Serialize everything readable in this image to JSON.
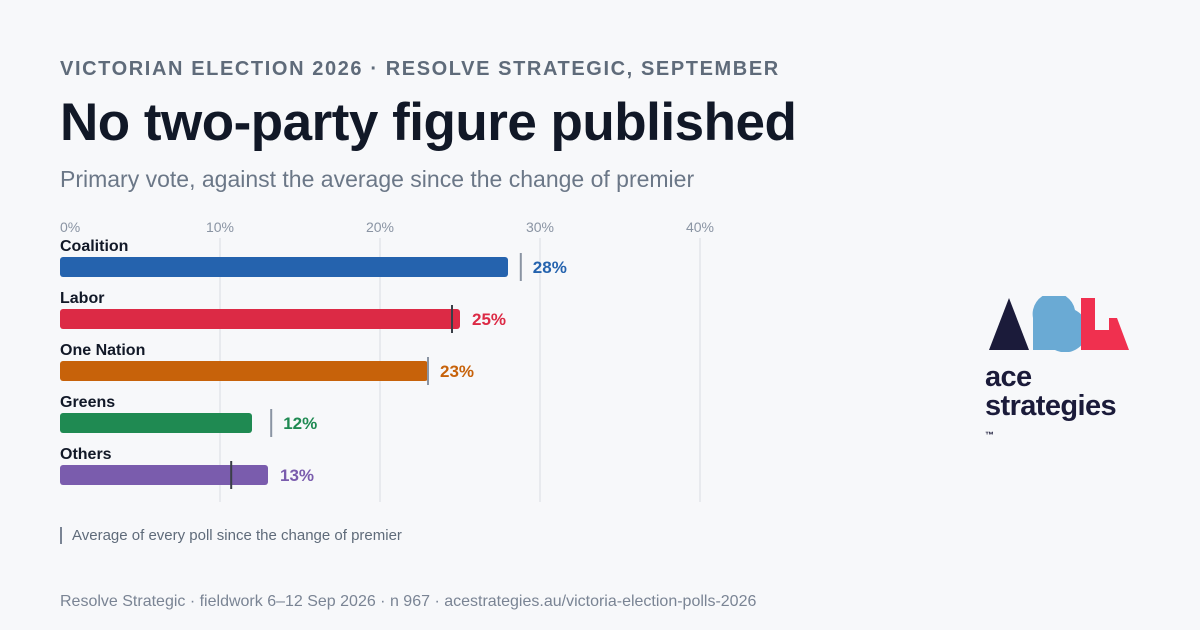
{
  "header": {
    "eyebrow": "VICTORIAN ELECTION 2026 · RESOLVE STRATEGIC, SEPTEMBER",
    "title": "No two-party figure published",
    "subtitle": "Primary vote, against the average since the change of premier"
  },
  "chart_data": {
    "type": "bar",
    "orientation": "horizontal",
    "xlim": [
      0,
      40
    ],
    "ticks": [
      0,
      10,
      20,
      30,
      40
    ],
    "tick_labels": [
      "0%",
      "10%",
      "20%",
      "30%",
      "40%"
    ],
    "grid": true,
    "categories": [
      "Coalition",
      "Labor",
      "One Nation",
      "Greens",
      "Others"
    ],
    "values": [
      28,
      25,
      23,
      12,
      13
    ],
    "value_labels": [
      "28%",
      "25%",
      "23%",
      "12%",
      "13%"
    ],
    "averages": [
      28.8,
      24.5,
      23.0,
      13.2,
      10.7
    ],
    "colors": [
      "#2563ae",
      "#dc2a45",
      "#c7620a",
      "#1f8a52",
      "#7a5cad"
    ]
  },
  "legend": {
    "average_label": "Average of every poll since the change of premier"
  },
  "footer": {
    "source": "Resolve Strategic · fieldwork 6–12 Sep 2026 · n 967 · acestrategies.au/victoria-election-polls-2026"
  },
  "logo": {
    "line1": "ace",
    "line2": "strategies",
    "mark": "™",
    "colors": [
      "#1b1b3a",
      "#6aaad4",
      "#f0304f"
    ]
  }
}
